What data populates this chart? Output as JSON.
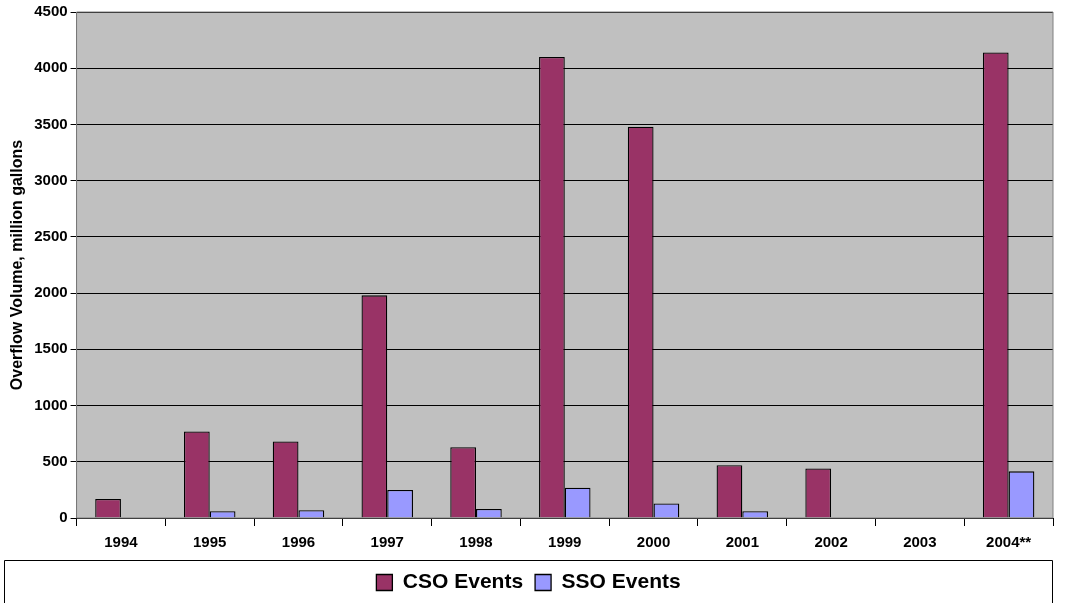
{
  "chart_data": {
    "type": "bar",
    "ylabel": "Overflow Volume, million gallons",
    "categories": [
      "1994",
      "1995",
      "1996",
      "1997",
      "1998",
      "1999",
      "2000",
      "2001",
      "2002",
      "2003",
      "2004**"
    ],
    "series": [
      {
        "name": "CSO Events",
        "color": "#993366",
        "values": [
          170,
          770,
          680,
          1980,
          630,
          4100,
          3480,
          470,
          440,
          null,
          4140
        ]
      },
      {
        "name": "SSO Events",
        "color": "#9999ff",
        "values": [
          null,
          60,
          70,
          250,
          80,
          270,
          130,
          60,
          null,
          null,
          415
        ]
      }
    ],
    "ylim": [
      0,
      4500
    ],
    "yticks": [
      0,
      500,
      1000,
      1500,
      2000,
      2500,
      3000,
      3500,
      4000,
      4500
    ],
    "grid": "y",
    "legend": "bottom"
  }
}
